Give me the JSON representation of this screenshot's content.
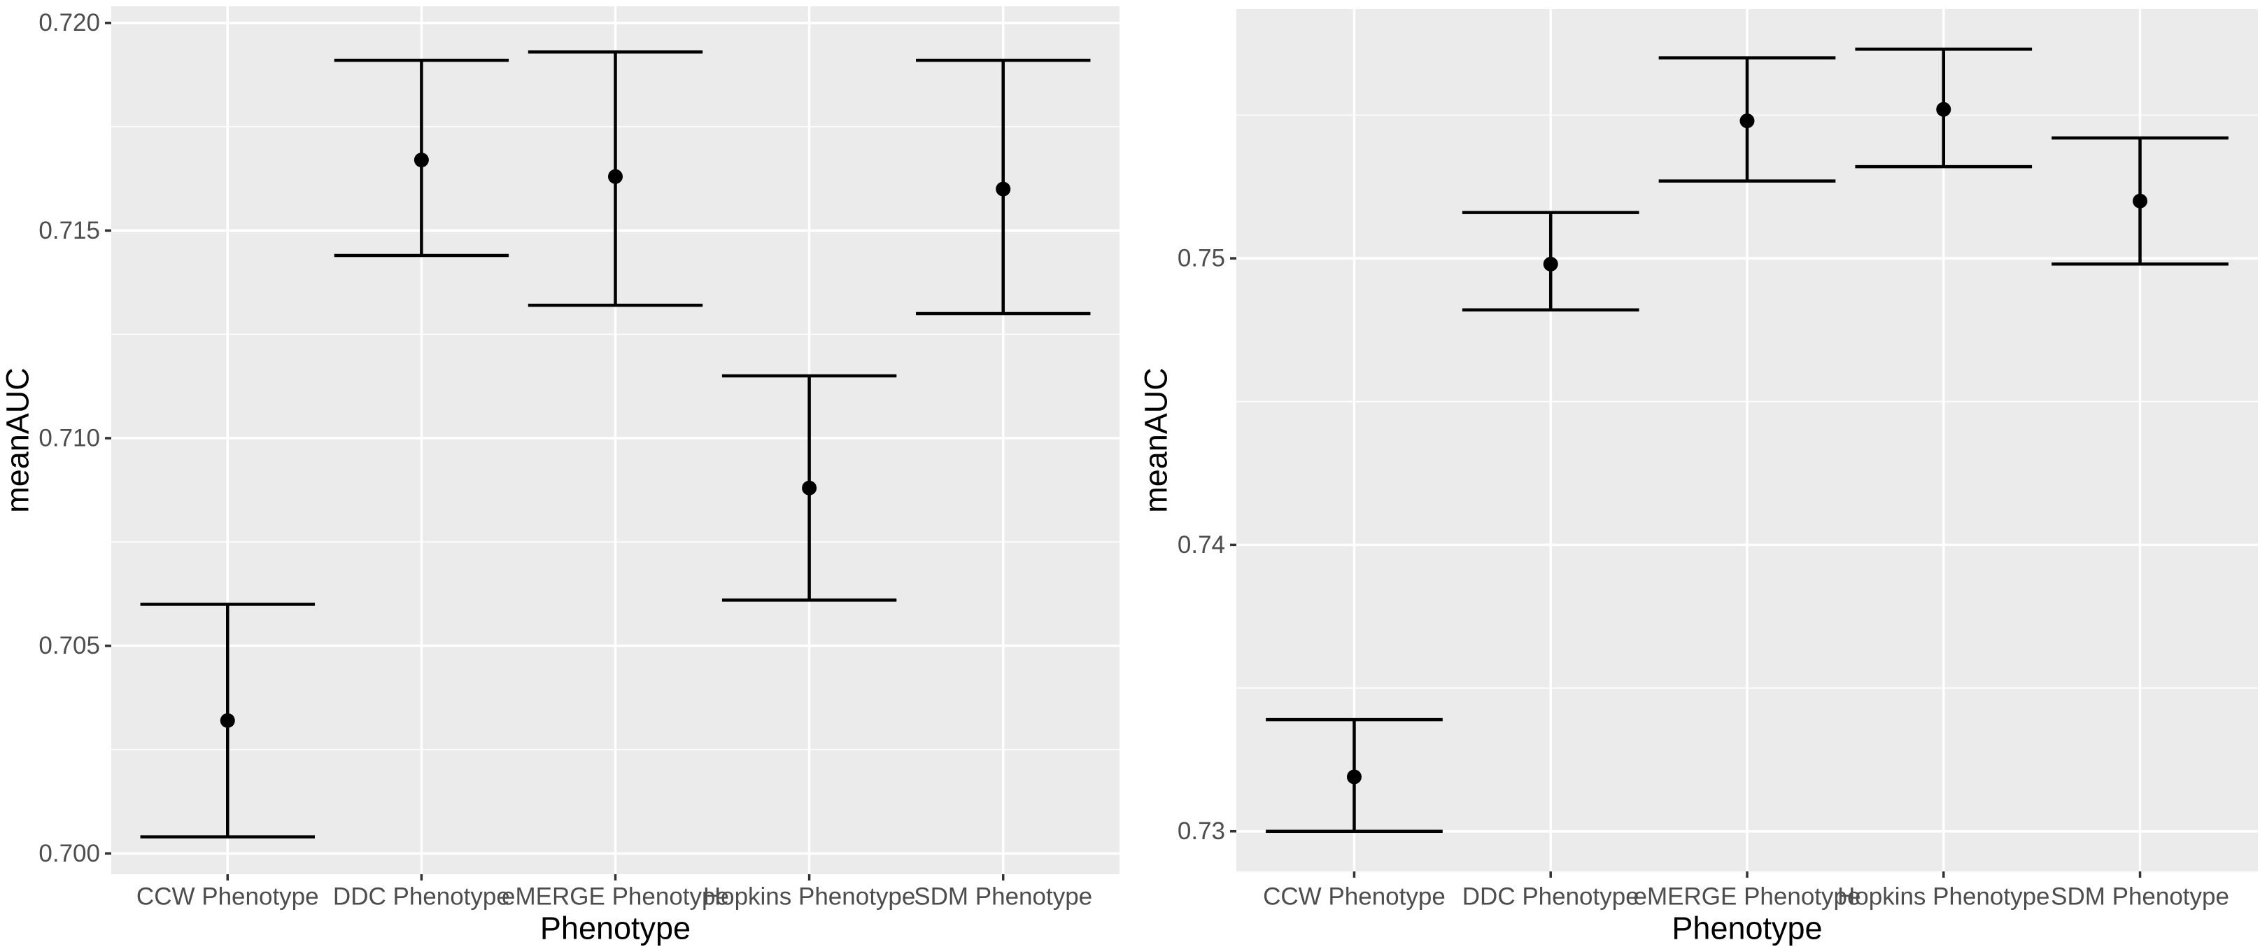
{
  "figure": {
    "kind": "side-by-side ggplot pointrange charts",
    "background": "#FFFFFF"
  },
  "colors": {
    "panel_background": "#EBEBEB",
    "grid_major": "#FFFFFF",
    "grid_minor": "#FFFFFF",
    "axis_tick": "#333333",
    "axis_text": "#4D4D4D",
    "axis_title": "#000000",
    "data": "#000000"
  },
  "chart_data": [
    {
      "type": "scatter",
      "subtype": "pointrange-with-errorbars",
      "title": "",
      "xlabel": "Phenotype",
      "ylabel": "meanAUC",
      "categories": [
        "CCW Phenotype",
        "DDC Phenotype",
        "eMERGE Phenotype",
        "Hopkins Phenotype",
        "SDM Phenotype"
      ],
      "series": [
        {
          "name": "meanAUC",
          "means": [
            0.7032,
            0.7167,
            0.7163,
            0.7088,
            0.716
          ],
          "lower": [
            0.7004,
            0.7144,
            0.7132,
            0.7061,
            0.713
          ],
          "upper": [
            0.706,
            0.7191,
            0.7193,
            0.7115,
            0.7191
          ]
        }
      ],
      "ylim": [
        0.6995,
        0.7204
      ],
      "yticks": {
        "major": [
          0.7,
          0.705,
          0.71,
          0.715,
          0.72
        ],
        "labels": [
          "0.700",
          "0.705",
          "0.710",
          "0.715",
          "0.720"
        ],
        "minor": [
          0.7025,
          0.7075,
          0.7125,
          0.7175
        ]
      },
      "grid": "on",
      "legend": "none"
    },
    {
      "type": "scatter",
      "subtype": "pointrange-with-errorbars",
      "title": "",
      "xlabel": "Phenotype",
      "ylabel": "meanAUC",
      "categories": [
        "CCW Phenotype",
        "DDC Phenotype",
        "eMERGE Phenotype",
        "Hopkins Phenotype",
        "SDM Phenotype"
      ],
      "series": [
        {
          "name": "meanAUC",
          "means": [
            0.7319,
            0.7498,
            0.7548,
            0.7552,
            0.752
          ],
          "lower": [
            0.73,
            0.7482,
            0.7527,
            0.7532,
            0.7498
          ],
          "upper": [
            0.7339,
            0.7516,
            0.757,
            0.7573,
            0.7542
          ]
        }
      ],
      "ylim": [
        0.7286,
        0.7587
      ],
      "yticks": {
        "major": [
          0.73,
          0.74,
          0.75
        ],
        "labels": [
          "0.73",
          "0.74",
          "0.75"
        ],
        "minor": [
          0.735,
          0.745,
          0.755
        ]
      },
      "grid": "on",
      "legend": "none"
    }
  ]
}
